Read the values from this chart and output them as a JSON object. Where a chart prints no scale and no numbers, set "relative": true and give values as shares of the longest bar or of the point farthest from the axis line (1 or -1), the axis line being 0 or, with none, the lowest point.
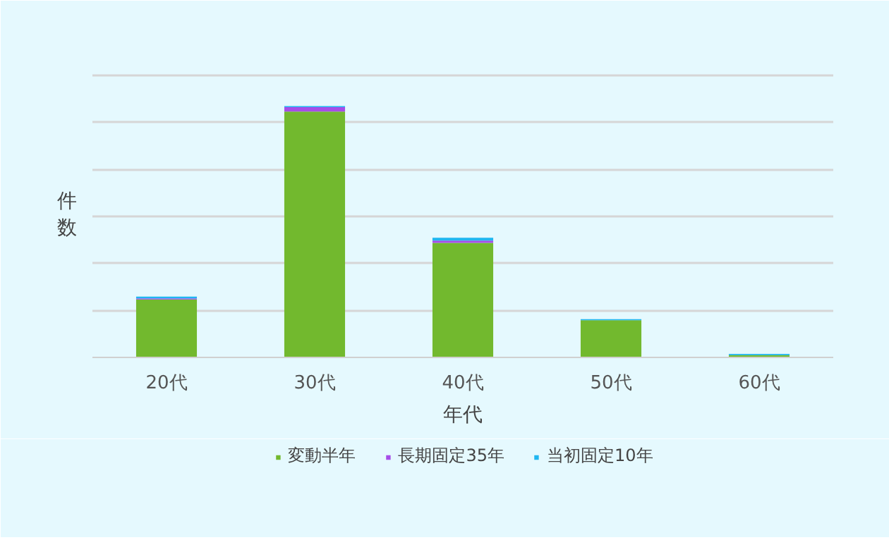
{
  "chart_data": {
    "type": "bar",
    "stacked": true,
    "relative": true,
    "xlabel": "年代",
    "ylabel": "件数",
    "categories": [
      "20代",
      "30代",
      "40代",
      "50代",
      "60代"
    ],
    "series": [
      {
        "name": "変動半年",
        "color": "#72b92e",
        "values": [
          0.231,
          0.978,
          0.456,
          0.148,
          0.009
        ]
      },
      {
        "name": "長期固定35年",
        "color": "#a64ee8",
        "values": [
          0.004,
          0.018,
          0.009,
          null,
          null
        ]
      },
      {
        "name": "当初固定10年",
        "color": "#1fb6f0",
        "values": [
          0.007,
          0.004,
          0.011,
          0.004,
          0.005
        ]
      }
    ],
    "grid": "y",
    "legend": "bottom"
  }
}
